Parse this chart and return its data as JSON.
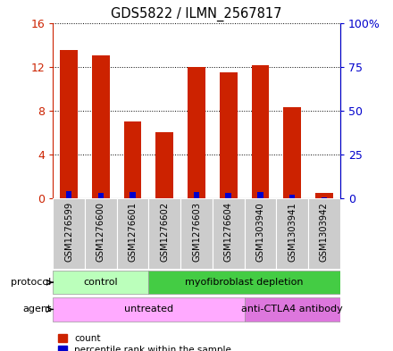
{
  "title": "GDS5822 / ILMN_2567817",
  "samples": [
    "GSM1276599",
    "GSM1276600",
    "GSM1276601",
    "GSM1276602",
    "GSM1276603",
    "GSM1276604",
    "GSM1303940",
    "GSM1303941",
    "GSM1303942"
  ],
  "counts": [
    13.5,
    13.0,
    7.0,
    6.0,
    12.0,
    11.5,
    12.1,
    8.3,
    0.5
  ],
  "percentiles": [
    4.2,
    3.0,
    3.5,
    0.2,
    3.5,
    3.0,
    3.5,
    2.0,
    0.3
  ],
  "ylim_left": [
    0,
    16
  ],
  "ylim_right": [
    0,
    100
  ],
  "yticks_left": [
    0,
    4,
    8,
    12,
    16
  ],
  "ytick_labels_left": [
    "0",
    "4",
    "8",
    "12",
    "16"
  ],
  "yticks_right": [
    0,
    25,
    50,
    75,
    100
  ],
  "ytick_labels_right": [
    "0",
    "25",
    "50",
    "75",
    "100%"
  ],
  "bar_color_red": "#cc2200",
  "bar_color_blue": "#0000cc",
  "bar_width": 0.55,
  "blue_bar_width": 0.18,
  "protocol_groups": [
    {
      "label": "control",
      "start": 0,
      "end": 3,
      "color": "#bbffbb"
    },
    {
      "label": "myofibroblast depletion",
      "start": 3,
      "end": 9,
      "color": "#44cc44"
    }
  ],
  "agent_groups": [
    {
      "label": "untreated",
      "start": 0,
      "end": 6,
      "color": "#ffaaff"
    },
    {
      "label": "anti-CTLA4 antibody",
      "start": 6,
      "end": 9,
      "color": "#dd77dd"
    }
  ],
  "protocol_label": "protocol",
  "agent_label": "agent",
  "legend_count": "count",
  "legend_percentile": "percentile rank within the sample",
  "grid_color": "#000000",
  "axis_color_left": "#cc2200",
  "axis_color_right": "#0000cc",
  "gray_box_color": "#cccccc",
  "spine_color": "#888888"
}
